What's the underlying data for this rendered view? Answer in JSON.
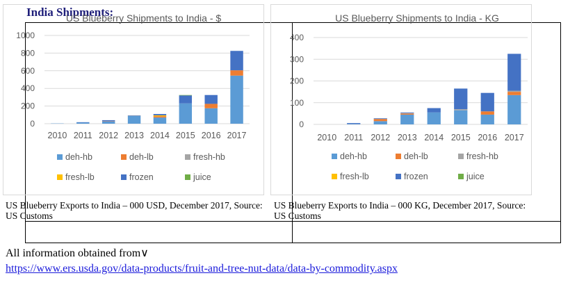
{
  "heading": "India Shipments:",
  "caption_left": "US Blueberry Exports to India – 000 USD, December 2017, Source: US Customs",
  "caption_right": "US Blueberry Exports to India – 000 KG, December 2017, Source: US Customs",
  "footer_text": "All information obtained from∨",
  "footer_link": "https://www.ers.usda.gov/data-products/fruit-and-tree-nut-data/data-by-commodity.aspx",
  "colors": {
    "deh-hb": "#5b9bd5",
    "deh-lb": "#ed7d31",
    "fresh-hb": "#a5a5a5",
    "fresh-lb": "#ffc000",
    "frozen": "#4472c4",
    "juice": "#70ad47"
  },
  "chart_data": [
    {
      "type": "bar",
      "stacked": true,
      "title": "US Blueberry Shipments to India - $",
      "categories": [
        "2010",
        "2011",
        "2012",
        "2013",
        "2014",
        "2015",
        "2016",
        "2017"
      ],
      "ylim": [
        0,
        1000
      ],
      "yticks": [
        "0",
        "200",
        "400",
        "600",
        "800",
        "1000"
      ],
      "series": [
        {
          "name": "deh-hb",
          "values": [
            3,
            12,
            25,
            90,
            70,
            230,
            175,
            545
          ]
        },
        {
          "name": "deh-lb",
          "values": [
            0,
            0,
            3,
            2,
            15,
            0,
            50,
            60
          ]
        },
        {
          "name": "fresh-hb",
          "values": [
            0,
            0,
            0,
            0,
            0,
            0,
            0,
            0
          ]
        },
        {
          "name": "fresh-lb",
          "values": [
            0,
            0,
            0,
            0,
            10,
            0,
            0,
            0
          ]
        },
        {
          "name": "frozen",
          "values": [
            0,
            5,
            12,
            3,
            15,
            90,
            100,
            220
          ]
        },
        {
          "name": "juice",
          "values": [
            0,
            0,
            0,
            0,
            0,
            5,
            0,
            0
          ]
        }
      ],
      "legend_rows": [
        [
          "deh-hb",
          "deh-lb",
          "fresh-hb"
        ],
        [
          "fresh-lb",
          "frozen",
          "juice"
        ]
      ]
    },
    {
      "type": "bar",
      "stacked": true,
      "title": "US Blueberry Shipments to India - KG",
      "categories": [
        "2010",
        "2011",
        "2012",
        "2013",
        "2014",
        "2015",
        "2016",
        "2017"
      ],
      "ylim": [
        0,
        400
      ],
      "yticks": [
        "0",
        "100",
        "200",
        "300",
        "400"
      ],
      "series": [
        {
          "name": "deh-hb",
          "values": [
            0,
            2,
            15,
            45,
            55,
            65,
            45,
            135
          ]
        },
        {
          "name": "deh-lb",
          "values": [
            0,
            0,
            10,
            5,
            0,
            0,
            15,
            15
          ]
        },
        {
          "name": "fresh-hb",
          "values": [
            0,
            0,
            0,
            2,
            0,
            5,
            0,
            5
          ]
        },
        {
          "name": "fresh-lb",
          "values": [
            0,
            0,
            0,
            0,
            0,
            0,
            0,
            0
          ]
        },
        {
          "name": "frozen",
          "values": [
            0,
            4,
            3,
            3,
            20,
            95,
            85,
            170
          ]
        },
        {
          "name": "juice",
          "values": [
            0,
            0,
            0,
            0,
            0,
            0,
            0,
            0
          ]
        }
      ],
      "legend_rows": [
        [
          "deh-hb",
          "deh-lb",
          "fresh-hb"
        ],
        [
          "fresh-lb",
          "frozen",
          "juice"
        ]
      ]
    }
  ]
}
